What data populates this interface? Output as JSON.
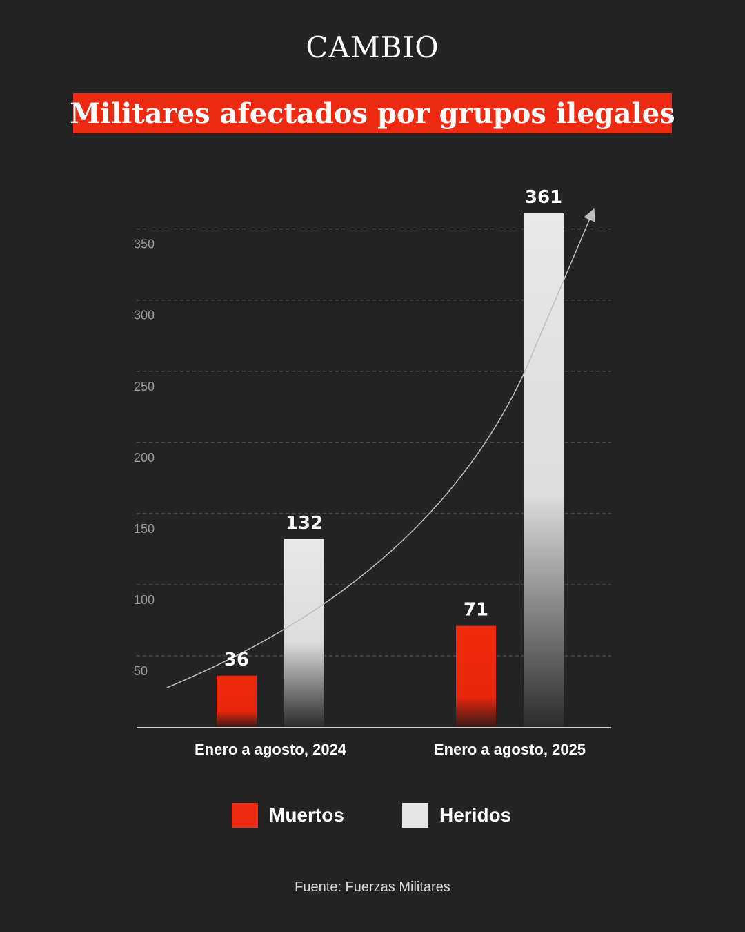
{
  "brand": "CAMBIO",
  "title": "Militares afectados por grupos ilegales",
  "source": "Fuente: Fuerzas Militares",
  "colors": {
    "muertos": "#ee2a12",
    "heridos": "#e6e6e6",
    "background": "#242424"
  },
  "chart_data": {
    "type": "bar",
    "title": "Militares afectados por grupos ilegales",
    "xlabel": "",
    "ylabel": "",
    "categories": [
      "Enero a agosto, 2024",
      "Enero a agosto, 2025"
    ],
    "series": [
      {
        "name": "Muertos",
        "values": [
          36,
          71
        ]
      },
      {
        "name": "Heridos",
        "values": [
          132,
          361
        ]
      }
    ],
    "yticks": [
      50,
      100,
      150,
      200,
      250,
      300,
      350
    ],
    "ylim": [
      0,
      361
    ],
    "grid": true,
    "legend": "bottom",
    "annotation": "rising trend arrow"
  }
}
